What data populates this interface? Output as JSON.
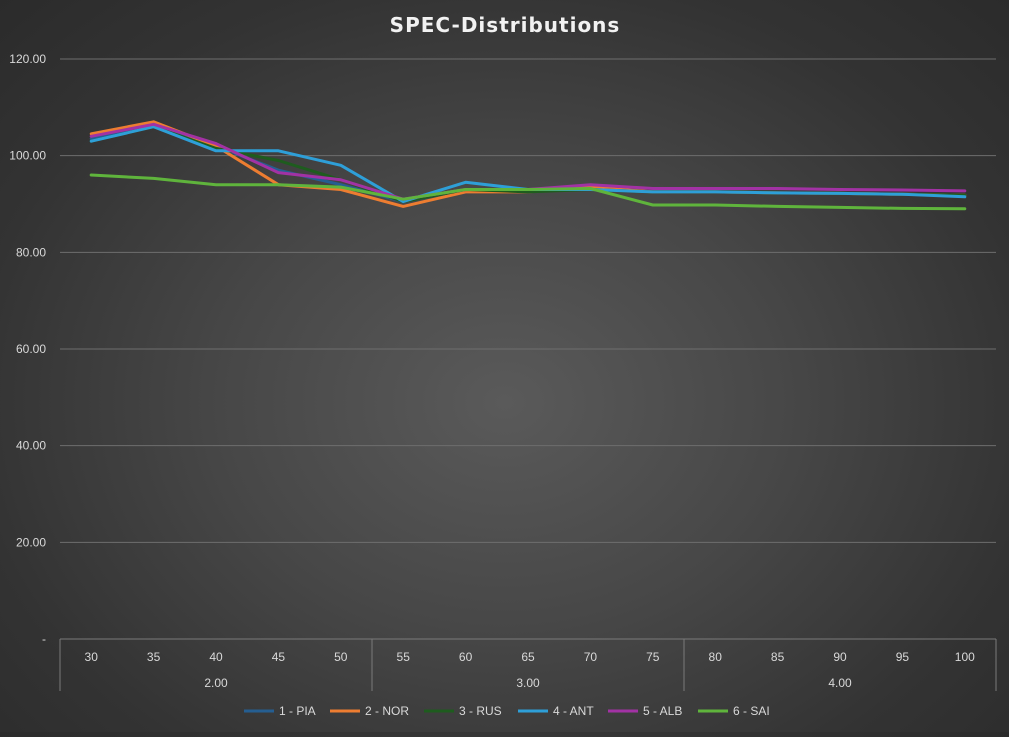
{
  "chart_data": {
    "type": "line",
    "title": "SPEC-Distributions",
    "xlabel": "",
    "ylabel": "",
    "ylim": [
      0,
      120
    ],
    "yticks": [
      "-",
      "20.00",
      "40.00",
      "60.00",
      "80.00",
      "100.00",
      "120.00"
    ],
    "categories": [
      "30",
      "35",
      "40",
      "45",
      "50",
      "55",
      "60",
      "65",
      "70",
      "75",
      "80",
      "85",
      "90",
      "95",
      "100"
    ],
    "groups": [
      {
        "label": "2.00",
        "count": 5
      },
      {
        "label": "3.00",
        "count": 5
      },
      {
        "label": "4.00",
        "count": 5
      }
    ],
    "legend_position": "bottom",
    "grid": true,
    "series": [
      {
        "name": "1 - PIA",
        "color": "#255e91",
        "values": [
          103.5,
          106.5,
          102,
          97,
          94,
          90.5,
          93,
          93,
          93.5,
          92.5,
          92.5,
          92.3,
          92.2,
          92,
          91.8
        ]
      },
      {
        "name": "2 - NOR",
        "color": "#ed7d31",
        "values": [
          104.5,
          107,
          102,
          94,
          93,
          89.5,
          92.5,
          92.5,
          93.5,
          92.5,
          92.5,
          92.3,
          92.2,
          92,
          91.8
        ]
      },
      {
        "name": "3 - RUS",
        "color": "#1e5c1e",
        "values": [
          103,
          106,
          101.5,
          99,
          95,
          90.5,
          93,
          92.5,
          93,
          92.5,
          92.5,
          92.3,
          92.2,
          92,
          91.8
        ]
      },
      {
        "name": "4 - ANT",
        "color": "#2e9fd8",
        "values": [
          103,
          106,
          101,
          101,
          98,
          90.5,
          94.5,
          93,
          93,
          92.5,
          92.5,
          92.3,
          92.2,
          92,
          91.5
        ]
      },
      {
        "name": "5 - ALB",
        "color": "#a232a4",
        "values": [
          104,
          106.5,
          102.5,
          96.5,
          95,
          91,
          93,
          93,
          94,
          93.2,
          93.2,
          93.2,
          93,
          92.9,
          92.7
        ]
      },
      {
        "name": "6 - SAI",
        "color": "#5fb43c",
        "values": [
          96,
          95.3,
          94,
          94,
          93.5,
          91,
          93,
          93,
          93.2,
          89.8,
          89.8,
          89.5,
          89.3,
          89.1,
          89
        ]
      }
    ]
  }
}
